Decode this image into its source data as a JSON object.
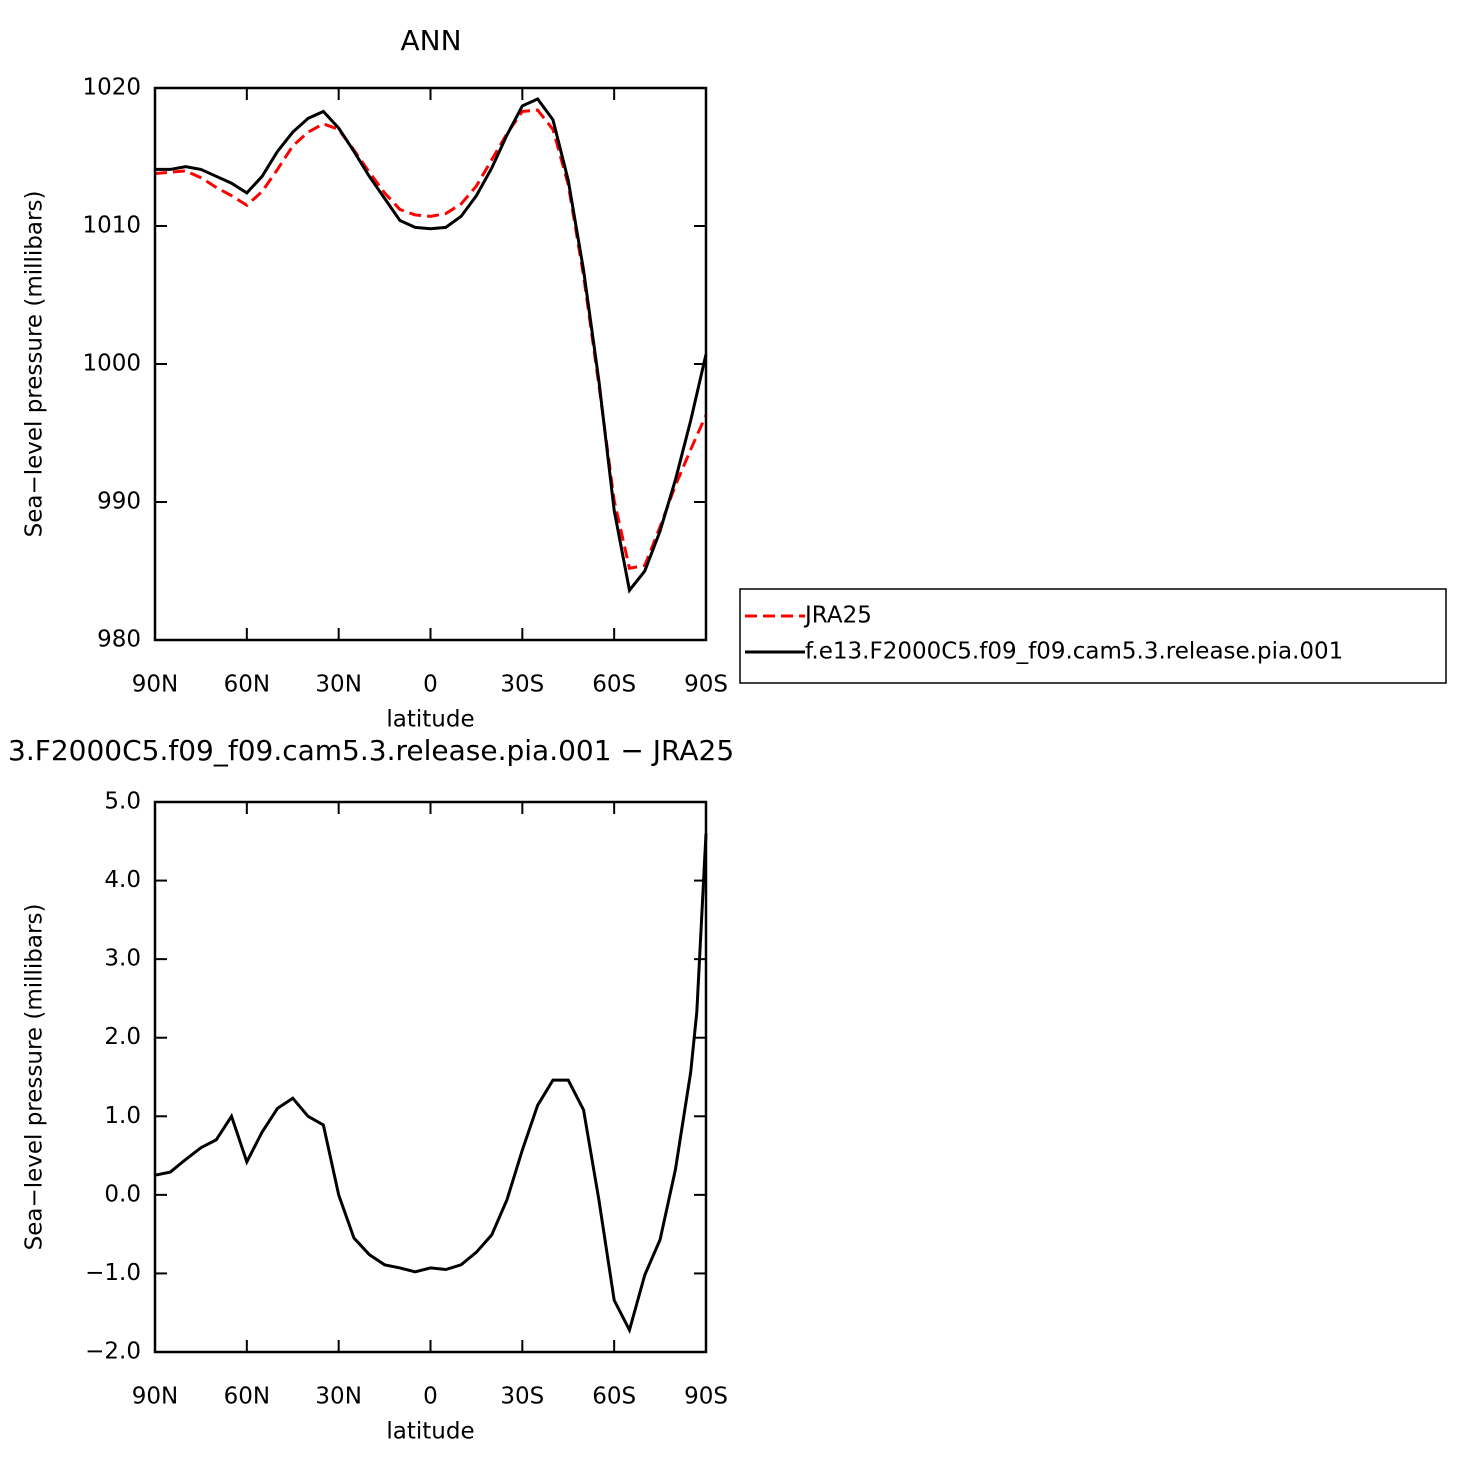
{
  "chart_data": [
    {
      "type": "line",
      "title": "ANN",
      "xlabel": "latitude",
      "ylabel": "Sea−level pressure (millibars)",
      "x": [
        90,
        85,
        80,
        75,
        70,
        65,
        60,
        55,
        50,
        45,
        40,
        35,
        30,
        25,
        20,
        15,
        10,
        5,
        0,
        -5,
        -10,
        -15,
        -20,
        -25,
        -30,
        -35,
        -40,
        -45,
        -50,
        -55,
        -60,
        -65,
        -70,
        -75,
        -80,
        -85,
        -90
      ],
      "xlim": [
        90,
        -90
      ],
      "xticks": [
        {
          "value": 90,
          "label": "90N"
        },
        {
          "value": 60,
          "label": "60N"
        },
        {
          "value": 30,
          "label": "30N"
        },
        0,
        {
          "value": -30,
          "label": "30S"
        },
        {
          "value": -60,
          "label": "60S"
        },
        {
          "value": -90,
          "label": "90S"
        }
      ],
      "ylim": [
        980,
        1020
      ],
      "yticks": [
        980,
        990,
        1000,
        1010,
        1020
      ],
      "legend": "right",
      "series": [
        {
          "name": "JRA25",
          "color": "#ff0000",
          "linestyle": "dashed",
          "values": [
            1013.8,
            1013.9,
            1014.0,
            1013.5,
            1012.8,
            1012.2,
            1011.5,
            1012.5,
            1014.1,
            1015.8,
            1016.8,
            1017.4,
            1017.0,
            1015.5,
            1013.9,
            1012.4,
            1011.2,
            1010.8,
            1010.7,
            1010.9,
            1011.6,
            1012.9,
            1014.8,
            1016.7,
            1018.3,
            1018.4,
            1017.0,
            1013.0,
            1006.4,
            998.5,
            990.1,
            985.2,
            985.4,
            988.2,
            991.2,
            993.8,
            996.3
          ]
        },
        {
          "name": "f.e13.F2000C5.f09_f09.cam5.3.release.pia.001",
          "color": "#000000",
          "linestyle": "solid",
          "values": [
            1014.1,
            1014.1,
            1014.3,
            1014.1,
            1013.6,
            1013.1,
            1012.4,
            1013.6,
            1015.4,
            1016.8,
            1017.8,
            1018.3,
            1017.1,
            1015.4,
            1013.6,
            1012.0,
            1010.4,
            1009.9,
            1009.8,
            1009.9,
            1010.7,
            1012.2,
            1014.2,
            1016.6,
            1018.7,
            1019.2,
            1017.7,
            1013.3,
            1006.8,
            998.8,
            989.4,
            983.6,
            985.0,
            987.9,
            991.6,
            995.9,
            1000.7
          ]
        }
      ]
    },
    {
      "type": "line",
      "title": "3.F2000C5.f09_f09.cam5.3.release.pia.001  −  JRA25",
      "xlabel": "latitude",
      "ylabel": "Sea−level pressure (millibars)",
      "x": [
        90,
        85,
        80,
        75,
        70,
        65,
        60,
        55,
        50,
        45,
        40,
        35,
        30,
        25,
        20,
        15,
        10,
        5,
        0,
        -5,
        -10,
        -15,
        -20,
        -25,
        -30,
        -35,
        -40,
        -45,
        -50,
        -55,
        -60,
        -65,
        -70,
        -75,
        -80,
        -85,
        -87,
        -90
      ],
      "xlim": [
        90,
        -90
      ],
      "xticks": [
        {
          "value": 90,
          "label": "90N"
        },
        {
          "value": 60,
          "label": "60N"
        },
        {
          "value": 30,
          "label": "30N"
        },
        0,
        {
          "value": -30,
          "label": "30S"
        },
        {
          "value": -60,
          "label": "60S"
        },
        {
          "value": -90,
          "label": "90S"
        }
      ],
      "ylim": [
        -2,
        5
      ],
      "yticks": [
        {
          "value": -2,
          "label": "−2.0"
        },
        {
          "value": -1,
          "label": "−1.0"
        },
        {
          "value": 0,
          "label": "0.0"
        },
        {
          "value": 1,
          "label": "1.0"
        },
        {
          "value": 2,
          "label": "2.0"
        },
        {
          "value": 3,
          "label": "3.0"
        },
        {
          "value": 4,
          "label": "4.0"
        },
        {
          "value": 5,
          "label": "5.0"
        }
      ],
      "series": [
        {
          "color": "#000000",
          "linestyle": "solid",
          "values": [
            0.25,
            0.29,
            0.45,
            0.6,
            0.7,
            1.0,
            0.42,
            0.8,
            1.1,
            1.23,
            1.0,
            0.89,
            0.0,
            -0.55,
            -0.76,
            -0.89,
            -0.93,
            -0.98,
            -0.93,
            -0.95,
            -0.89,
            -0.73,
            -0.51,
            -0.06,
            0.57,
            1.14,
            1.46,
            1.46,
            1.08,
            -0.06,
            -1.34,
            -1.72,
            -1.02,
            -0.57,
            0.32,
            1.56,
            2.33,
            4.6
          ]
        }
      ]
    }
  ]
}
